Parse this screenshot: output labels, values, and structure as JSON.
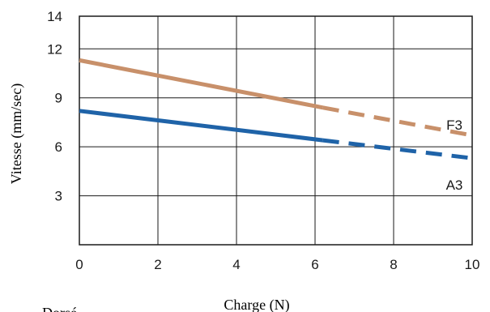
{
  "chart_data": {
    "type": "line",
    "title": "",
    "xlabel": "Charge (N)",
    "ylabel": "Vitesse (mm/sec)",
    "xlim": [
      0,
      10
    ],
    "ylim": [
      0,
      14
    ],
    "x_ticks": [
      "0",
      "2",
      "4",
      "6",
      "8",
      "10"
    ],
    "y_ticks": [
      "3",
      "6",
      "9",
      "12",
      "14"
    ],
    "grid": true,
    "series": [
      {
        "name": "F3",
        "color": "#c8906a",
        "solid": [
          [
            0,
            11.3
          ],
          [
            6.2,
            8.4
          ]
        ],
        "dashed": [
          [
            6.2,
            8.4
          ],
          [
            10,
            6.7
          ]
        ]
      },
      {
        "name": "A3",
        "color": "#1f63a8",
        "solid": [
          [
            0,
            8.2
          ],
          [
            6.2,
            6.4
          ]
        ],
        "dashed": [
          [
            6.2,
            6.4
          ],
          [
            10,
            5.3
          ]
        ]
      }
    ]
  },
  "cut_text": "Dorsé"
}
